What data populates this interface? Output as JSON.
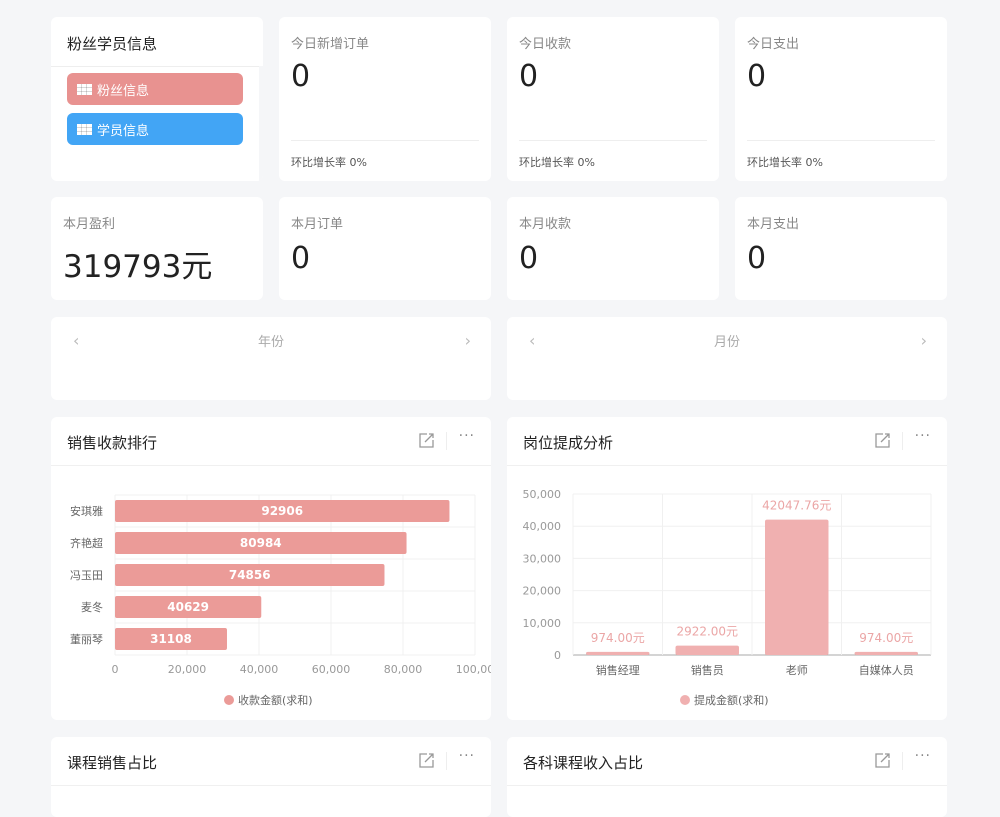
{
  "fans_card": {
    "title": "粉丝学员信息",
    "buttons": [
      {
        "label": "粉丝信息",
        "color": "#e89290"
      },
      {
        "label": "学员信息",
        "color": "#42a5f5"
      }
    ]
  },
  "today": [
    {
      "label": "今日新增订单",
      "value": "0",
      "footer": "环比增长率 0%"
    },
    {
      "label": "今日收款",
      "value": "0",
      "footer": "环比增长率 0%"
    },
    {
      "label": "今日支出",
      "value": "0",
      "footer": "环比增长率 0%"
    }
  ],
  "month": [
    {
      "label": "本月盈利",
      "value": "319793元"
    },
    {
      "label": "本月订单",
      "value": "0"
    },
    {
      "label": "本月收款",
      "value": "0"
    },
    {
      "label": "本月支出",
      "value": "0"
    }
  ],
  "pickers": [
    {
      "label": "年份"
    },
    {
      "label": "月份"
    }
  ],
  "panels": {
    "sales_rank": "销售收款排行",
    "commission": "岗位提成分析",
    "course_share": "课程销售占比",
    "course_income": "各科课程收入占比"
  },
  "chart_data": [
    {
      "type": "bar",
      "orientation": "horizontal",
      "categories": [
        "安琪雅",
        "齐艳超",
        "冯玉田",
        "麦冬",
        "董丽琴"
      ],
      "series": [
        {
          "name": "收款金额(求和)",
          "values": [
            92906,
            80984,
            74856,
            40629,
            31108
          ]
        }
      ],
      "data_labels": [
        "92906",
        "80984",
        "74856",
        "40629",
        "31108"
      ],
      "xlim": [
        0,
        100000
      ],
      "xticks": [
        "0",
        "20,000",
        "40,000",
        "60,000",
        "80,000",
        "100,00"
      ],
      "color": "#eb9b98",
      "grid": true,
      "legend": "bottom"
    },
    {
      "type": "bar",
      "categories": [
        "销售经理",
        "销售员",
        "老师",
        "自媒体人员"
      ],
      "series": [
        {
          "name": "提成金额(求和)",
          "values": [
            974.0,
            2922.0,
            42047.76,
            974.0
          ]
        }
      ],
      "data_labels": [
        "974.00元",
        "2922.00元",
        "42047.76元",
        "974.00元"
      ],
      "ylim": [
        0,
        50000
      ],
      "yticks": [
        "0",
        "10,000",
        "20,000",
        "30,000",
        "40,000",
        "50,000"
      ],
      "color": "#f0b0b0",
      "grid": true,
      "legend": "bottom"
    }
  ]
}
